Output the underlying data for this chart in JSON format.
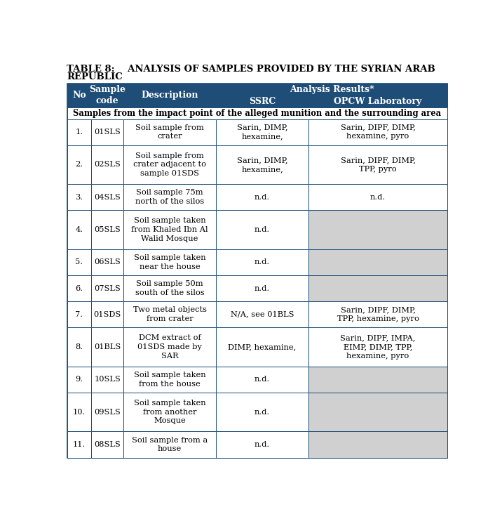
{
  "title_line1": "TABLE 8:    ANALYSIS OF SAMPLES PROVIDED BY THE SYRIAN ARAB",
  "title_line2": "REPUBLIC",
  "header_bg": "#1e4d78",
  "header_text_color": "#ffffff",
  "row_bg_white": "#ffffff",
  "row_bg_gray": "#d0d0d0",
  "border_color": "#1e4d78",
  "title_color": "#000000",
  "section_row": "Samples from the impact point of the alleged munition and the surrounding area",
  "rows": [
    {
      "no": "1.",
      "code": "01SLS",
      "desc": "Soil sample from\ncrater",
      "ssrc": "Sarin, DIMP,\nhexamine,",
      "opcw": "Sarin, DIPF, DIMP,\nhexamine, pyro",
      "opcw_gray": false
    },
    {
      "no": "2.",
      "code": "02SLS",
      "desc": "Soil sample from\ncrater adjacent to\nsample 01SDS",
      "ssrc": "Sarin, DIMP,\nhexamine,",
      "opcw": "Sarin, DIPF, DIMP,\nTPP, pyro",
      "opcw_gray": false
    },
    {
      "no": "3.",
      "code": "04SLS",
      "desc": "Soil sample 75m\nnorth of the silos",
      "ssrc": "n.d.",
      "opcw": "n.d.",
      "opcw_gray": false
    },
    {
      "no": "4.",
      "code": "05SLS",
      "desc": "Soil sample taken\nfrom Khaled Ibn Al\nWalid Mosque",
      "ssrc": "n.d.",
      "opcw": "",
      "opcw_gray": true
    },
    {
      "no": "5.",
      "code": "06SLS",
      "desc": "Soil sample taken\nnear the house",
      "ssrc": "n.d.",
      "opcw": "",
      "opcw_gray": true
    },
    {
      "no": "6.",
      "code": "07SLS",
      "desc": "Soil sample 50m\nsouth of the silos",
      "ssrc": "n.d.",
      "opcw": "",
      "opcw_gray": true
    },
    {
      "no": "7.",
      "code": "01SDS",
      "desc": "Two metal objects\nfrom crater",
      "ssrc": "N/A, see 01BLS",
      "opcw": "Sarin, DIPF, DIMP,\nTPP, hexamine, pyro",
      "opcw_gray": false
    },
    {
      "no": "8.",
      "code": "01BLS",
      "desc": "DCM extract of\n01SDS made by\nSAR",
      "ssrc": "DIMP, hexamine,",
      "opcw": "Sarin, DIPF, IMPA,\nEIMP, DIMP, TPP,\nhexamine, pyro",
      "opcw_gray": false
    },
    {
      "no": "9.",
      "code": "10SLS",
      "desc": "Soil sample taken\nfrom the house",
      "ssrc": "n.d.",
      "opcw": "",
      "opcw_gray": true
    },
    {
      "no": "10.",
      "code": "09SLS",
      "desc": "Soil sample taken\nfrom another\nMosque",
      "ssrc": "n.d.",
      "opcw": "",
      "opcw_gray": true
    },
    {
      "no": "11.",
      "code": "08SLS",
      "desc": "Soil sample from a\nhouse",
      "ssrc": "n.d.",
      "opcw": "",
      "opcw_gray": true
    }
  ]
}
